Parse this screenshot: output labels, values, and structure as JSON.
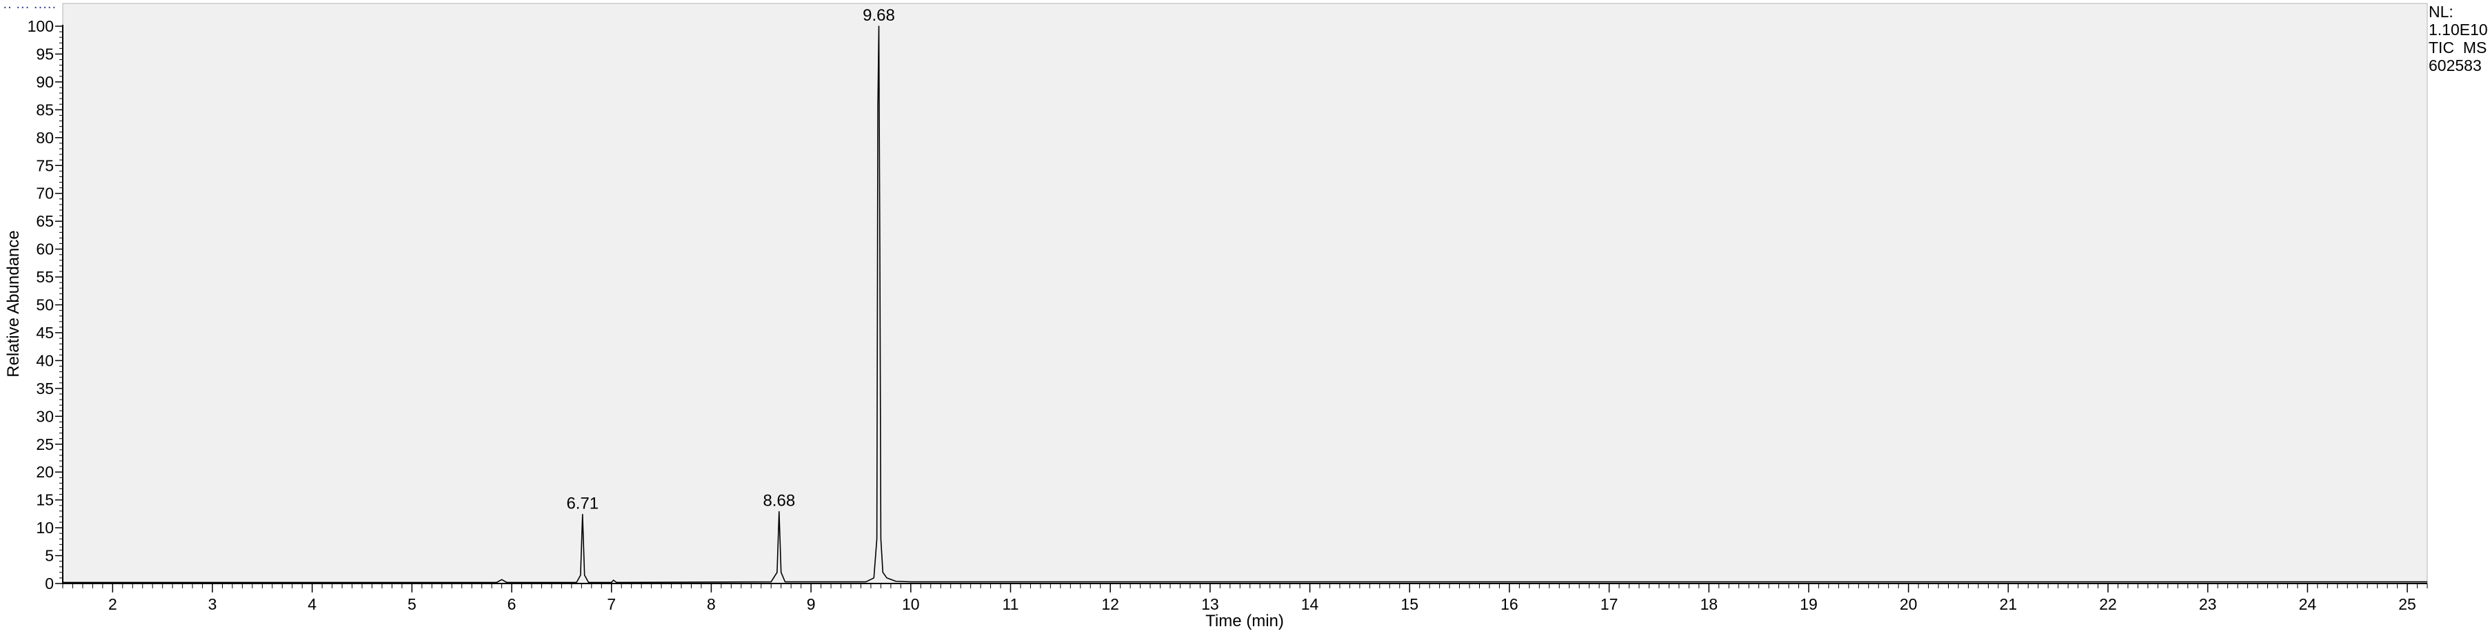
{
  "chart_data": {
    "type": "line",
    "xlabel": "Time (min)",
    "ylabel": "Relative Abundance",
    "xlim": [
      1.5,
      25.2
    ],
    "ylim": [
      0,
      100
    ],
    "x_ticks": [
      2,
      3,
      4,
      5,
      6,
      7,
      8,
      9,
      10,
      11,
      12,
      13,
      14,
      15,
      16,
      17,
      18,
      19,
      20,
      21,
      22,
      23,
      24,
      25
    ],
    "y_ticks": [
      0,
      5,
      10,
      15,
      20,
      25,
      30,
      35,
      40,
      45,
      50,
      55,
      60,
      65,
      70,
      75,
      80,
      85,
      90,
      95,
      100
    ],
    "series": [
      {
        "name": "TIC MS",
        "color": "#000000",
        "x": [
          1.5,
          5.85,
          5.9,
          5.95,
          6.65,
          6.69,
          6.71,
          6.73,
          6.77,
          7.0,
          7.02,
          7.05,
          8.6,
          8.66,
          8.68,
          8.7,
          8.74,
          9.55,
          9.63,
          9.66,
          9.67,
          9.68,
          9.69,
          9.7,
          9.72,
          9.76,
          9.85,
          10.0,
          25.2
        ],
        "y": [
          0.2,
          0.2,
          0.7,
          0.2,
          0.2,
          1.5,
          12.4,
          1.5,
          0.2,
          0.2,
          0.6,
          0.2,
          0.3,
          2.0,
          12.9,
          2.0,
          0.3,
          0.3,
          1.0,
          8.0,
          85.5,
          100,
          60.0,
          8.0,
          2.0,
          1.0,
          0.4,
          0.3,
          0.3
        ]
      }
    ],
    "peak_labels": [
      {
        "x": 6.71,
        "y": 12.4,
        "text": "6.71"
      },
      {
        "x": 8.68,
        "y": 12.9,
        "text": "8.68"
      },
      {
        "x": 9.68,
        "y": 100,
        "text": "9.68"
      }
    ],
    "nl_info": [
      "NL:",
      "1.10E10",
      "TIC  MS",
      "602583"
    ],
    "header_marks": [
      "·· ··· ·····"
    ],
    "plot_background": "#f0f0f0",
    "grid": false,
    "legend": "none"
  }
}
